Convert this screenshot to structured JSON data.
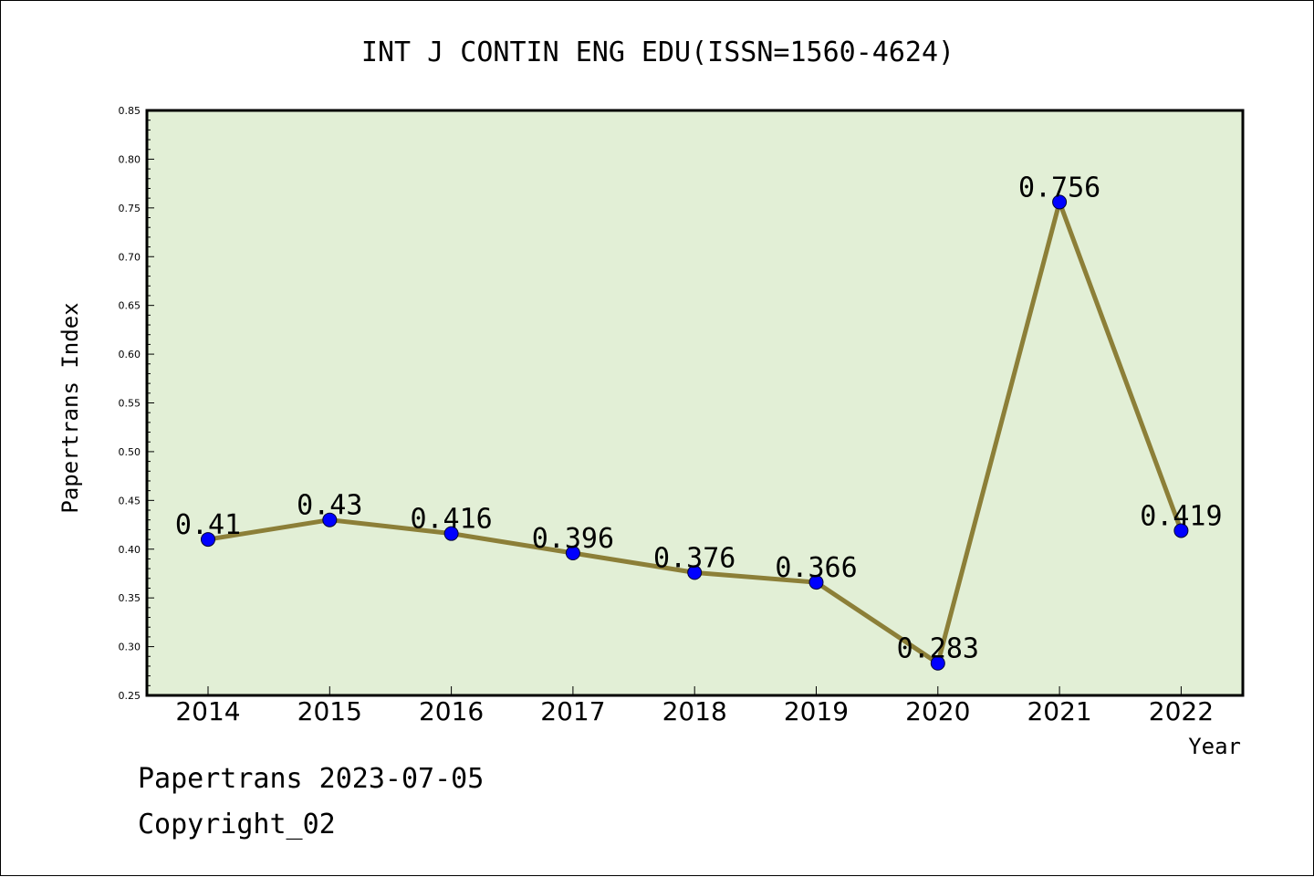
{
  "title": "INT J CONTIN ENG EDU(ISSN=1560-4624)",
  "footer": {
    "line1": "Papertrans 2023-07-05",
    "line2": "Copyright_02"
  },
  "colors": {
    "plot_background": "#e2efd6",
    "line": "#8c7f38",
    "marker": "#0000ff"
  },
  "chart_data": {
    "type": "line",
    "title": "INT J CONTIN ENG EDU(ISSN=1560-4624)",
    "xlabel": "Year",
    "ylabel": "Papertrans Index",
    "categories": [
      "2014",
      "2015",
      "2016",
      "2017",
      "2018",
      "2019",
      "2020",
      "2021",
      "2022"
    ],
    "series": [
      {
        "values": [
          0.41,
          0.43,
          0.416,
          0.396,
          0.376,
          0.366,
          0.283,
          0.756,
          0.419
        ],
        "labels": [
          "0.41",
          "0.43",
          "0.416",
          "0.396",
          "0.376",
          "0.366",
          "0.283",
          "0.756",
          "0.419"
        ]
      }
    ],
    "ylim": [
      0.25,
      0.85
    ],
    "yticks": [
      "0.25",
      "0.30",
      "0.35",
      "0.40",
      "0.45",
      "0.50",
      "0.55",
      "0.60",
      "0.65",
      "0.70",
      "0.75",
      "0.80",
      "0.85"
    ],
    "grid": false,
    "legend": "none"
  }
}
